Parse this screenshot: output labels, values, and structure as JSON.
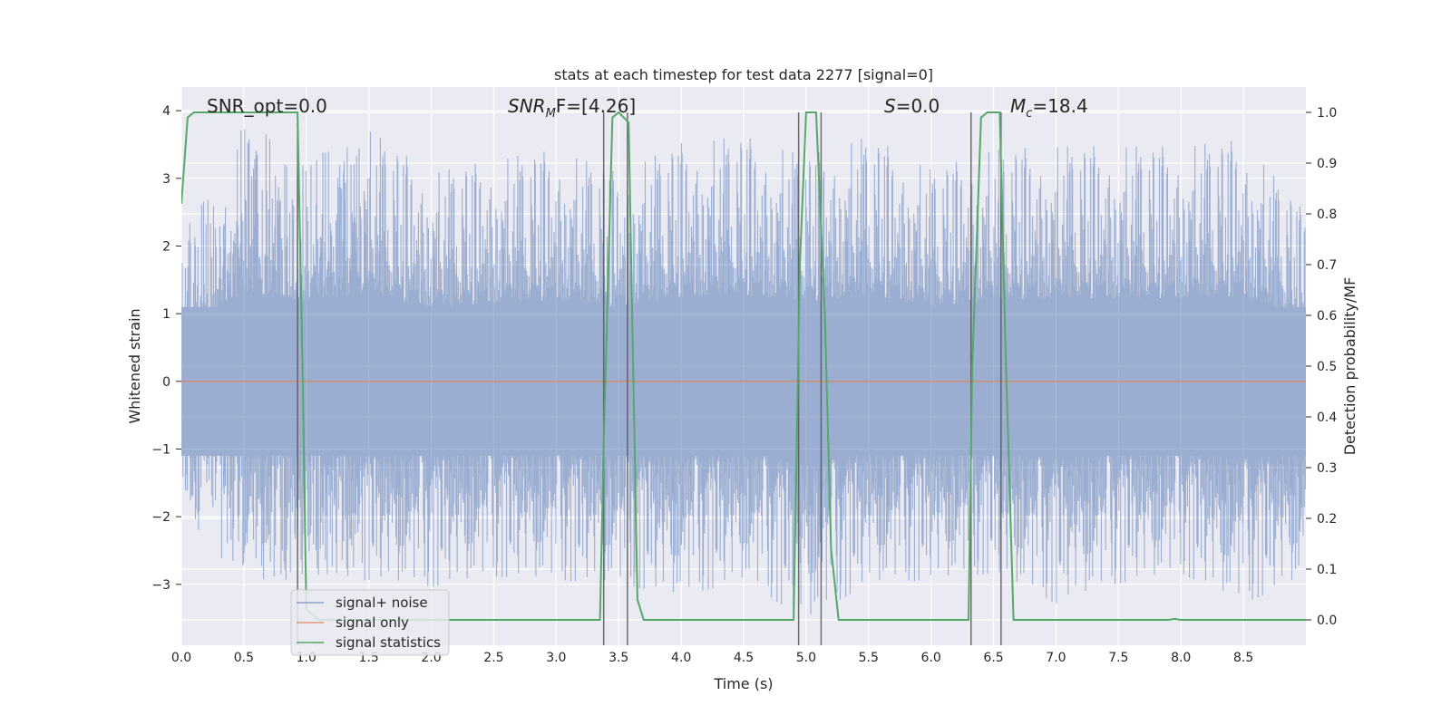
{
  "chart_data": {
    "type": "line",
    "title": "stats at each timestep for test data 2277 [signal=0]",
    "xlabel": "Time (s)",
    "ylabel_left": "Whitened strain",
    "ylabel_right": "Detection probability/MF",
    "xlim": [
      0.0,
      9.0
    ],
    "ylim_left": [
      -3.9,
      4.35
    ],
    "ylim_right": [
      -0.05,
      1.05
    ],
    "x_ticks": [
      "0.0",
      "0.5",
      "1.0",
      "1.5",
      "2.0",
      "2.5",
      "3.0",
      "3.5",
      "4.0",
      "4.5",
      "5.0",
      "5.5",
      "6.0",
      "6.5",
      "7.0",
      "7.5",
      "8.0",
      "8.5"
    ],
    "y_ticks_left": [
      "−3",
      "−2",
      "−1",
      "0",
      "1",
      "2",
      "3",
      "4"
    ],
    "y_ticks_right": [
      "0.0",
      "0.1",
      "0.2",
      "0.3",
      "0.4",
      "0.5",
      "0.6",
      "0.7",
      "0.8",
      "0.9",
      "1.0"
    ],
    "grid": true,
    "legend_position": "lower-left",
    "annotations": {
      "snr_opt": "SNR_opt=0.0",
      "snr_mf_main": "SNR",
      "snr_mf_sub": "M",
      "snr_mf_rest": "F=[4.26]",
      "s_var": "S",
      "s_rest": "=0.0",
      "mc_main": "M",
      "mc_sub": "c",
      "mc_rest": "=18.4"
    },
    "colors": {
      "background": "#eaeaf2",
      "grid": "#ffffff",
      "noise": "#4c72b0",
      "signal": "#dd8452",
      "stats": "#55a868",
      "marker": "#555555"
    },
    "series": [
      {
        "name": "signal+ noise",
        "axis": "left",
        "style": "dense noise",
        "envelope": {
          "x": [
            0.0,
            0.5,
            1.0,
            1.5,
            2.0,
            2.5,
            3.0,
            3.5,
            4.0,
            4.5,
            5.0,
            5.5,
            6.0,
            6.5,
            7.0,
            7.5,
            8.0,
            8.5,
            9.0
          ],
          "max": [
            2.2,
            3.8,
            3.4,
            3.75,
            3.1,
            3.3,
            3.45,
            3.1,
            3.55,
            3.65,
            3.35,
            3.65,
            3.15,
            3.45,
            3.5,
            3.5,
            3.5,
            3.6,
            2.5
          ],
          "min": [
            -2.0,
            -3.0,
            -3.0,
            -2.95,
            -3.05,
            -2.9,
            -2.95,
            -3.0,
            -3.2,
            -2.95,
            -3.55,
            -3.0,
            -2.95,
            -2.85,
            -3.3,
            -3.0,
            -2.85,
            -3.3,
            -2.9
          ]
        }
      },
      {
        "name": "signal only",
        "axis": "left",
        "x": [
          0.0,
          9.0
        ],
        "y": [
          0.0,
          0.0
        ]
      },
      {
        "name": "signal statistics",
        "axis": "right",
        "x": [
          0.0,
          0.05,
          0.1,
          0.9,
          0.93,
          0.97,
          1.0,
          1.1,
          2.2,
          3.35,
          3.38,
          3.45,
          3.5,
          3.58,
          3.65,
          3.7,
          4.9,
          4.95,
          5.0,
          5.08,
          5.15,
          5.2,
          5.26,
          6.3,
          6.33,
          6.4,
          6.45,
          6.55,
          6.6,
          6.66,
          6.7,
          7.9,
          7.95,
          8.0,
          9.0
        ],
        "y": [
          0.82,
          0.99,
          1.0,
          1.0,
          1.0,
          0.5,
          0.02,
          0.0,
          0.0,
          0.0,
          0.35,
          0.99,
          1.0,
          0.98,
          0.04,
          0.0,
          0.0,
          0.7,
          1.0,
          1.0,
          0.6,
          0.14,
          0.0,
          0.0,
          0.5,
          0.99,
          1.0,
          1.0,
          0.5,
          0.0,
          0.0,
          0.0,
          0.002,
          0.0,
          0.0
        ]
      }
    ],
    "vertical_markers": [
      0.93,
      3.38,
      3.57,
      4.94,
      5.12,
      6.32,
      6.56
    ]
  }
}
